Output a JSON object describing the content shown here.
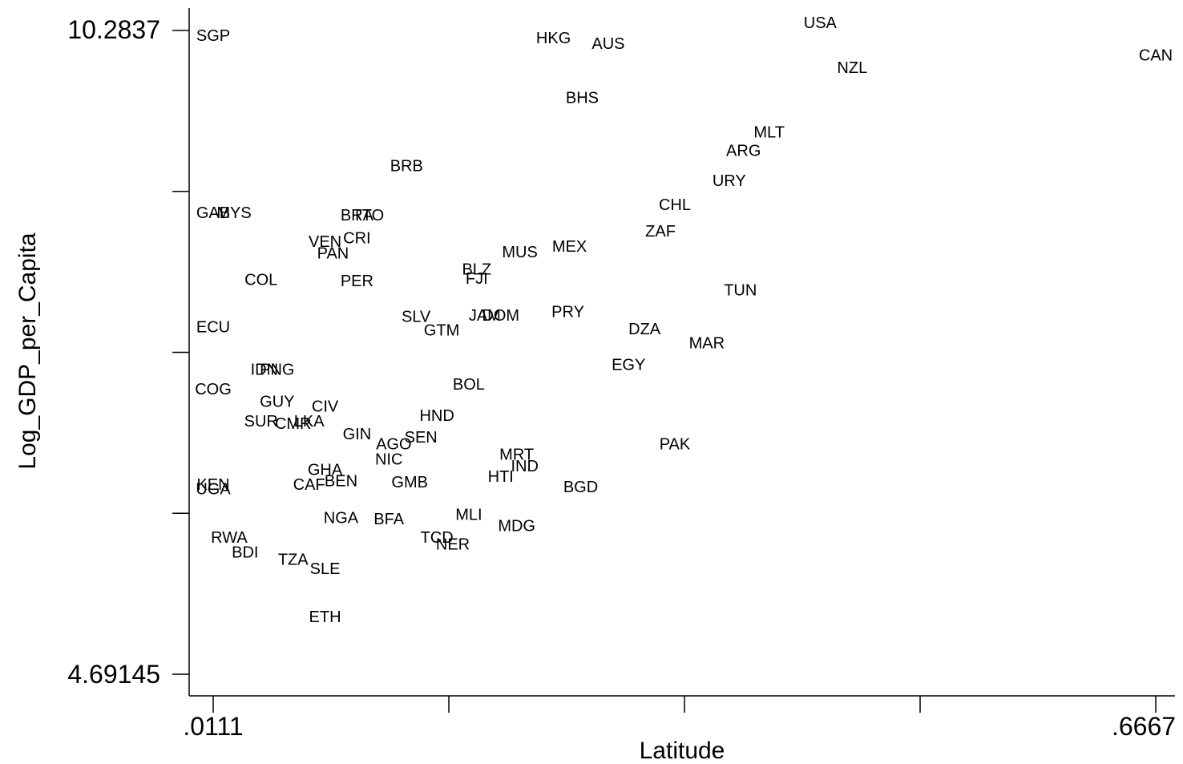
{
  "chart_data": {
    "type": "scatter",
    "title": "",
    "xlabel": "Latitude",
    "ylabel": "Log_GDP_per_Capita",
    "xlim": [
      0.0111,
      0.6667
    ],
    "ylim": [
      4.69145,
      10.2837
    ],
    "x_tick_labels": [
      ".0111",
      ".6667"
    ],
    "y_tick_labels": [
      "10.2837",
      "4.69145"
    ],
    "x_ticks": [
      0.0111,
      0.175,
      0.3389,
      0.5028,
      0.6667
    ],
    "y_ticks": [
      4.69145,
      6.0895,
      7.4876,
      8.8856,
      10.2837
    ],
    "grid": false,
    "legend": "none",
    "colors": {
      "marker_text": "#000000",
      "axis": "#000000",
      "background": "#ffffff"
    },
    "points": [
      {
        "label": "SGP",
        "x": 0.0111,
        "y": 10.23
      },
      {
        "label": "USA",
        "x": 0.4333,
        "y": 10.34
      },
      {
        "label": "HKG",
        "x": 0.2478,
        "y": 10.21
      },
      {
        "label": "AUS",
        "x": 0.2859,
        "y": 10.16
      },
      {
        "label": "CAN",
        "x": 0.6667,
        "y": 10.06
      },
      {
        "label": "NZL",
        "x": 0.4556,
        "y": 9.95
      },
      {
        "label": "BHS",
        "x": 0.2678,
        "y": 9.69
      },
      {
        "label": "MLT",
        "x": 0.3978,
        "y": 9.39
      },
      {
        "label": "ARG",
        "x": 0.38,
        "y": 9.23
      },
      {
        "label": "BRB",
        "x": 0.1456,
        "y": 9.1
      },
      {
        "label": "URY",
        "x": 0.37,
        "y": 8.97
      },
      {
        "label": "CHL",
        "x": 0.3322,
        "y": 8.76
      },
      {
        "label": "GAB",
        "x": 0.0111,
        "y": 8.69
      },
      {
        "label": "MYS",
        "x": 0.0256,
        "y": 8.69
      },
      {
        "label": "BRA",
        "x": 0.1111,
        "y": 8.67
      },
      {
        "label": "TTO",
        "x": 0.1189,
        "y": 8.67
      },
      {
        "label": "ZAF",
        "x": 0.3222,
        "y": 8.53
      },
      {
        "label": "CRI",
        "x": 0.1111,
        "y": 8.47
      },
      {
        "label": "VEN",
        "x": 0.0889,
        "y": 8.44
      },
      {
        "label": "MEX",
        "x": 0.2589,
        "y": 8.4
      },
      {
        "label": "MUS",
        "x": 0.2244,
        "y": 8.35
      },
      {
        "label": "PAN",
        "x": 0.0944,
        "y": 8.34
      },
      {
        "label": "BLZ",
        "x": 0.1944,
        "y": 8.2
      },
      {
        "label": "COL",
        "x": 0.0444,
        "y": 8.11
      },
      {
        "label": "FJI",
        "x": 0.1944,
        "y": 8.12
      },
      {
        "label": "PER",
        "x": 0.1111,
        "y": 8.1
      },
      {
        "label": "TUN",
        "x": 0.3778,
        "y": 8.02
      },
      {
        "label": "PRY",
        "x": 0.2578,
        "y": 7.83
      },
      {
        "label": "SLV",
        "x": 0.1522,
        "y": 7.79
      },
      {
        "label": "JAM",
        "x": 0.2,
        "y": 7.8
      },
      {
        "label": "DOM",
        "x": 0.2111,
        "y": 7.8
      },
      {
        "label": "ECU",
        "x": 0.0111,
        "y": 7.7
      },
      {
        "label": "GTM",
        "x": 0.17,
        "y": 7.67
      },
      {
        "label": "DZA",
        "x": 0.3111,
        "y": 7.68
      },
      {
        "label": "MAR",
        "x": 0.3544,
        "y": 7.56
      },
      {
        "label": "EGY",
        "x": 0.3,
        "y": 7.37
      },
      {
        "label": "IDN",
        "x": 0.0467,
        "y": 7.33
      },
      {
        "label": "PNG",
        "x": 0.0556,
        "y": 7.33
      },
      {
        "label": "BOL",
        "x": 0.1889,
        "y": 7.2
      },
      {
        "label": "COG",
        "x": 0.0111,
        "y": 7.16
      },
      {
        "label": "GUY",
        "x": 0.0556,
        "y": 7.05
      },
      {
        "label": "CIV",
        "x": 0.0889,
        "y": 7.01
      },
      {
        "label": "HND",
        "x": 0.1667,
        "y": 6.93
      },
      {
        "label": "SUR",
        "x": 0.0444,
        "y": 6.88
      },
      {
        "label": "LKA",
        "x": 0.0778,
        "y": 6.88
      },
      {
        "label": "CMR",
        "x": 0.0667,
        "y": 6.86
      },
      {
        "label": "GIN",
        "x": 0.1111,
        "y": 6.77
      },
      {
        "label": "SEN",
        "x": 0.1556,
        "y": 6.74
      },
      {
        "label": "AGO",
        "x": 0.1367,
        "y": 6.68
      },
      {
        "label": "PAK",
        "x": 0.3322,
        "y": 6.68
      },
      {
        "label": "MRT",
        "x": 0.2222,
        "y": 6.59
      },
      {
        "label": "NIC",
        "x": 0.1333,
        "y": 6.55
      },
      {
        "label": "IND",
        "x": 0.2278,
        "y": 6.49
      },
      {
        "label": "HTI",
        "x": 0.2111,
        "y": 6.4
      },
      {
        "label": "GHA",
        "x": 0.0889,
        "y": 6.46
      },
      {
        "label": "BEN",
        "x": 0.1,
        "y": 6.36
      },
      {
        "label": "GMB",
        "x": 0.1478,
        "y": 6.35
      },
      {
        "label": "BGD",
        "x": 0.2667,
        "y": 6.31
      },
      {
        "label": "KEN",
        "x": 0.0111,
        "y": 6.33
      },
      {
        "label": "CAF",
        "x": 0.0778,
        "y": 6.33
      },
      {
        "label": "UGA",
        "x": 0.0111,
        "y": 6.29
      },
      {
        "label": "MLI",
        "x": 0.1889,
        "y": 6.07
      },
      {
        "label": "NGA",
        "x": 0.1,
        "y": 6.04
      },
      {
        "label": "BFA",
        "x": 0.1333,
        "y": 6.03
      },
      {
        "label": "MDG",
        "x": 0.2222,
        "y": 5.97
      },
      {
        "label": "RWA",
        "x": 0.0222,
        "y": 5.87
      },
      {
        "label": "TCD",
        "x": 0.1667,
        "y": 5.87
      },
      {
        "label": "NER",
        "x": 0.1778,
        "y": 5.81
      },
      {
        "label": "BDI",
        "x": 0.0333,
        "y": 5.74
      },
      {
        "label": "TZA",
        "x": 0.0667,
        "y": 5.68
      },
      {
        "label": "SLE",
        "x": 0.0889,
        "y": 5.6
      },
      {
        "label": "ETH",
        "x": 0.0889,
        "y": 5.18
      }
    ]
  }
}
